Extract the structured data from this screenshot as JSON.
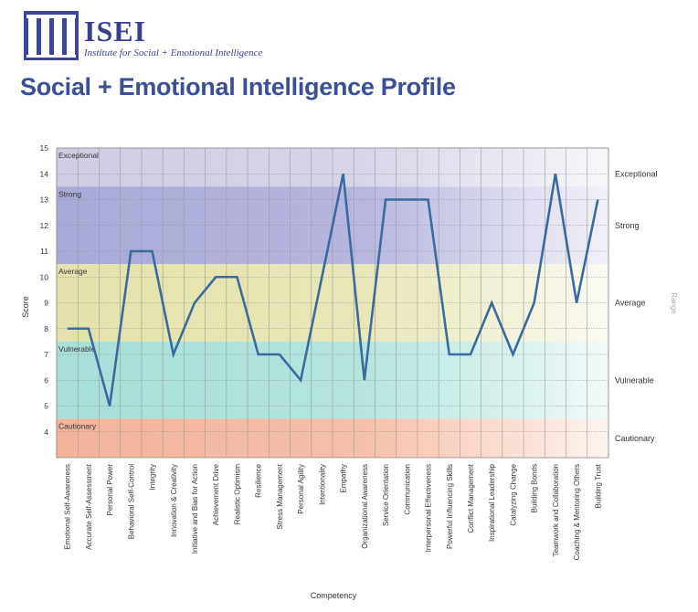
{
  "logo": {
    "name": "ISEI",
    "subtitle": "Institute for Social + Emotional Intelligence"
  },
  "page_title": "Social + Emotional Intelligence Profile",
  "chart_data": {
    "type": "line",
    "xlabel": "Competency",
    "ylabel": "Score",
    "right_axis_label": "Range",
    "ylim": [
      3,
      15
    ],
    "yticks": [
      4,
      5,
      6,
      7,
      8,
      9,
      10,
      11,
      12,
      13,
      14,
      15
    ],
    "grid": true,
    "line_color": "#3d6a9e",
    "bands": [
      {
        "label": "Exceptional",
        "from": 13.5,
        "to": 15,
        "color": "#cfcde3"
      },
      {
        "label": "Strong",
        "from": 10.5,
        "to": 13.5,
        "color": "#a9a9d8"
      },
      {
        "label": "Average",
        "from": 7.5,
        "to": 10.5,
        "color": "#e4e2aa"
      },
      {
        "label": "Vulnerable",
        "from": 4.5,
        "to": 7.5,
        "color": "#a6e0d8"
      },
      {
        "label": "Cautionary",
        "from": 3,
        "to": 4.5,
        "color": "#f4b49a"
      }
    ],
    "right_labels": [
      {
        "label": "Exceptional",
        "y": 14
      },
      {
        "label": "Strong",
        "y": 12
      },
      {
        "label": "Average",
        "y": 9
      },
      {
        "label": "Vulnerable",
        "y": 6
      },
      {
        "label": "Cautionary",
        "y": 3.75
      }
    ],
    "categories": [
      "Emotional Self-Awareness",
      "Accurate Self-Assessment",
      "Personal Power",
      "Behavioral Self-Control",
      "Integrity",
      "Innovation & Creativity",
      "Initiative and Bias for Action",
      "Achievement Drive",
      "Realistic Optimism",
      "Resilience",
      "Stress Management",
      "Personal Agility",
      "Intentionality",
      "Empathy",
      "Organizational Awareness",
      "Service Orientation",
      "Communication",
      "Interpersonal Effectiveness",
      "Powerful Influencing Skills",
      "Conflict Management",
      "Inspirational Leadership",
      "Catalyzing Change",
      "Building Bonds",
      "Teamwork and Collaboration",
      "Coaching & Mentoring Others",
      "Building Trust"
    ],
    "values": [
      8,
      8,
      5,
      11,
      11,
      7,
      9,
      10,
      10,
      7,
      7,
      6,
      10,
      14,
      6,
      13,
      13,
      13,
      7,
      7,
      9,
      7,
      9,
      14,
      9,
      13
    ]
  }
}
